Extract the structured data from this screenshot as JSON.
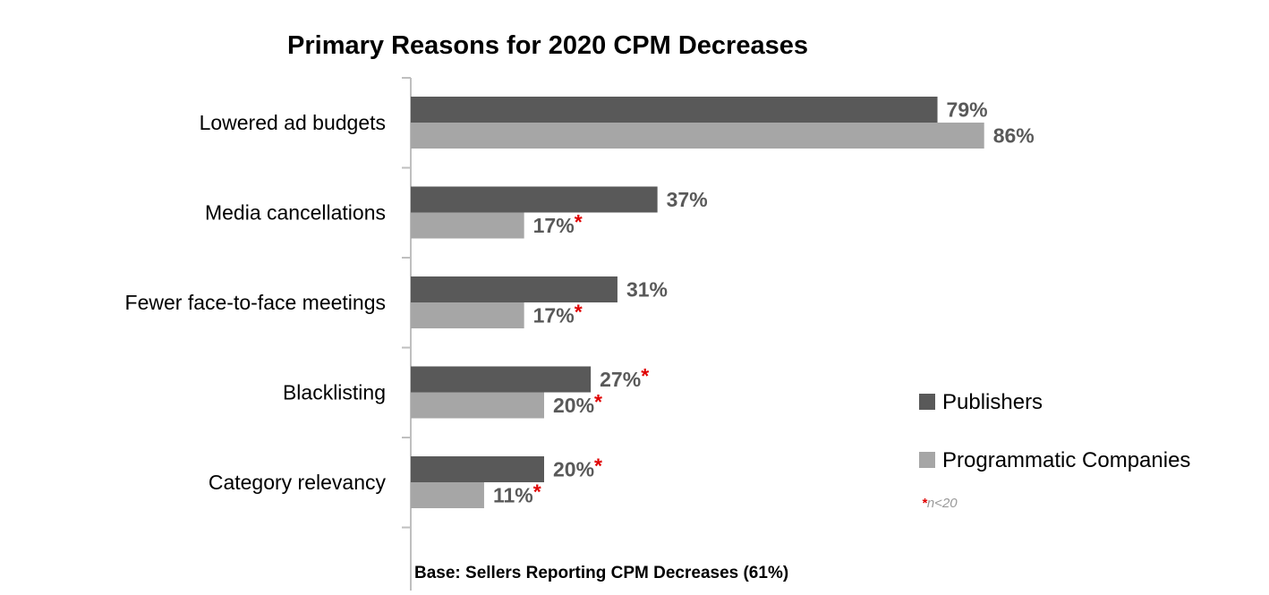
{
  "chart_data": {
    "type": "bar",
    "orientation": "horizontal",
    "title": "Primary Reasons for 2020 CPM Decreases",
    "categories": [
      "Lowered ad budgets",
      "Media cancellations",
      "Fewer face-to-face meetings",
      "Blacklisting",
      "Category relevancy"
    ],
    "series": [
      {
        "name": "Publishers",
        "color": "#595959",
        "values": [
          79,
          37,
          31,
          27,
          20
        ],
        "labels": [
          "79%",
          "37%",
          "31%",
          "27%",
          "20%"
        ],
        "flags": [
          false,
          false,
          false,
          true,
          true
        ]
      },
      {
        "name": "Programmatic Companies",
        "color": "#a6a6a6",
        "values": [
          86,
          17,
          17,
          20,
          11
        ],
        "labels": [
          "86%",
          "17%",
          "17%",
          "20%",
          "11%"
        ],
        "flags": [
          false,
          true,
          true,
          true,
          true
        ]
      }
    ],
    "xlim": [
      0,
      100
    ],
    "grid": false,
    "legend": "right",
    "value_label_color": "#595959",
    "flag_marker": "*",
    "flag_color": "#e00000",
    "note": {
      "marker": "*",
      "text": "n<20"
    },
    "base_note": "Base:  Sellers Reporting CPM Decreases (61%)"
  }
}
